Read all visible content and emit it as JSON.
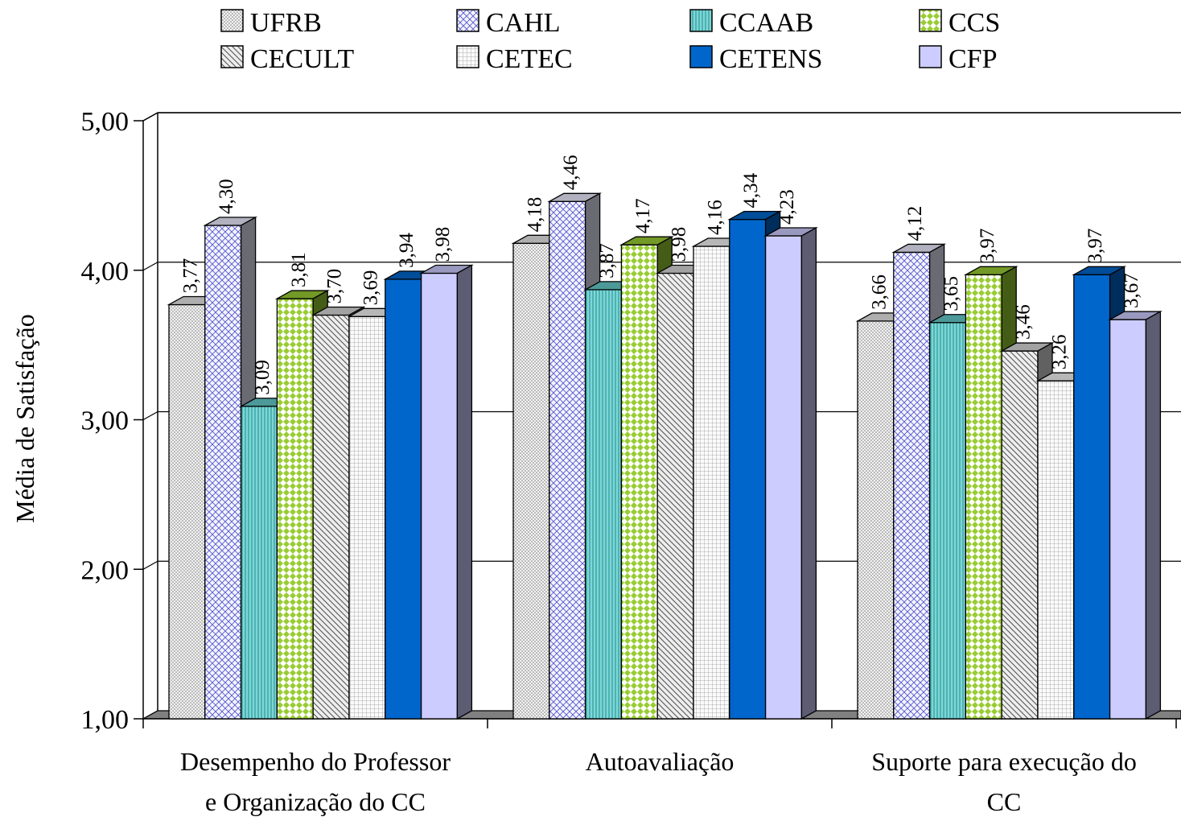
{
  "chart_data": {
    "type": "bar",
    "title": "",
    "xlabel": "",
    "ylabel": "Média de Satisfação",
    "ylim": [
      1,
      5
    ],
    "yticks": [
      "1,00",
      "2,00",
      "3,00",
      "4,00",
      "5,00"
    ],
    "grid": true,
    "legend_position": "top",
    "categories": [
      [
        "Desempenho do Professor",
        "e Organização do CC"
      ],
      [
        "Autoavaliação"
      ],
      [
        "Suporte para execução do",
        "CC"
      ]
    ],
    "series": [
      {
        "name": "UFRB",
        "color": "#e8e8e8",
        "pattern": "dots",
        "values": [
          3.77,
          4.18,
          3.66
        ],
        "labels": [
          "3,77",
          "4,18",
          "3,66"
        ]
      },
      {
        "name": "CAHL",
        "color": "#ececff",
        "pattern": "crosshatch",
        "values": [
          4.3,
          4.46,
          4.12
        ],
        "labels": [
          "4,30",
          "4,46",
          "4,12"
        ]
      },
      {
        "name": "CCAAB",
        "color": "#66cccc",
        "pattern": "vertical-lines",
        "values": [
          3.09,
          3.87,
          3.65
        ],
        "labels": [
          "3,09",
          "3,87",
          "3,65"
        ]
      },
      {
        "name": "CCS",
        "color": "#99cc33",
        "pattern": "diamonds",
        "values": [
          3.81,
          4.17,
          3.97
        ],
        "labels": [
          "3,81",
          "4,17",
          "3,97"
        ]
      },
      {
        "name": "CECULT",
        "color": "#d8d8d8",
        "pattern": "diagonal",
        "values": [
          3.7,
          3.98,
          3.46
        ],
        "labels": [
          "3,70",
          "3,98",
          "3,46"
        ]
      },
      {
        "name": "CETEC",
        "color": "#f4f4f4",
        "pattern": "grid",
        "values": [
          3.69,
          4.16,
          3.26
        ],
        "labels": [
          "3,69",
          "4,16",
          "3,26"
        ]
      },
      {
        "name": "CETENS",
        "color": "#0066cc",
        "pattern": "solid",
        "values": [
          3.94,
          4.34,
          3.97
        ],
        "labels": [
          "3,94",
          "4,34",
          "3,97"
        ]
      },
      {
        "name": "CFP",
        "color": "#ccccff",
        "pattern": "solid",
        "values": [
          3.98,
          4.23,
          3.67
        ],
        "labels": [
          "3,98",
          "4,23",
          "3,67"
        ]
      }
    ]
  }
}
